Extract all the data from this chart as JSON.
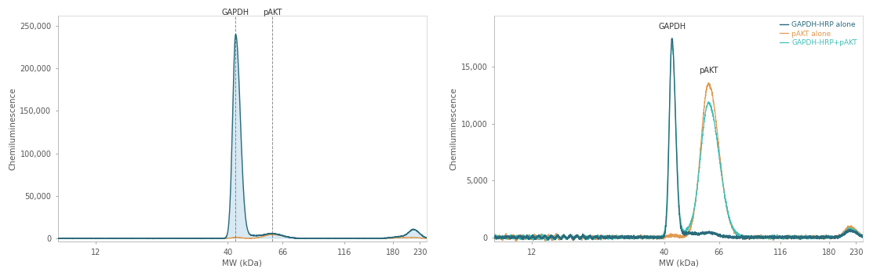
{
  "left_chart": {
    "ylabel": "Chemiluminescence",
    "xlabel": "MW (kDa)",
    "ylim": [
      -4000,
      262000
    ],
    "yticks": [
      0,
      50000,
      100000,
      150000,
      200000,
      250000
    ],
    "ytick_labels": [
      "0",
      "50,000",
      "100,000",
      "150,000",
      "200,000",
      "250,000"
    ],
    "gapdh_label": "GAPDH",
    "pakt_label": "pAKT",
    "line_color_dark": "#2a6b7c",
    "line_color_orange": "#e09a50",
    "fill_color": "#b8d8ea",
    "fill_alpha": 0.55,
    "gapdh_mw": 43,
    "pakt_mw": 60
  },
  "right_chart": {
    "ylabel": "Chemiluminescence",
    "xlabel": "MW (kDa)",
    "ylim": [
      -400,
      19500
    ],
    "yticks": [
      0,
      5000,
      10000,
      15000
    ],
    "ytick_labels": [
      "0",
      "5,000",
      "10,000",
      "15,000"
    ],
    "gapdh_label": "GAPDH",
    "pakt_label": "pAKT",
    "legend_labels": [
      "GAPDH-HRP alone",
      "pAKT alone",
      "GAPDH-HRP+pAKT"
    ],
    "color_gapdh_hrp": "#2a6b7c",
    "color_pakt": "#e09a50",
    "color_multiplex": "#40bfb8"
  },
  "xtick_vals": [
    12,
    40,
    66,
    116,
    180,
    230
  ],
  "xtick_labels": [
    "12",
    "40",
    "66",
    "116",
    "180",
    "230"
  ],
  "xmin": 8.5,
  "xmax": 245,
  "background_color": "#ffffff",
  "panel_background": "#ffffff"
}
